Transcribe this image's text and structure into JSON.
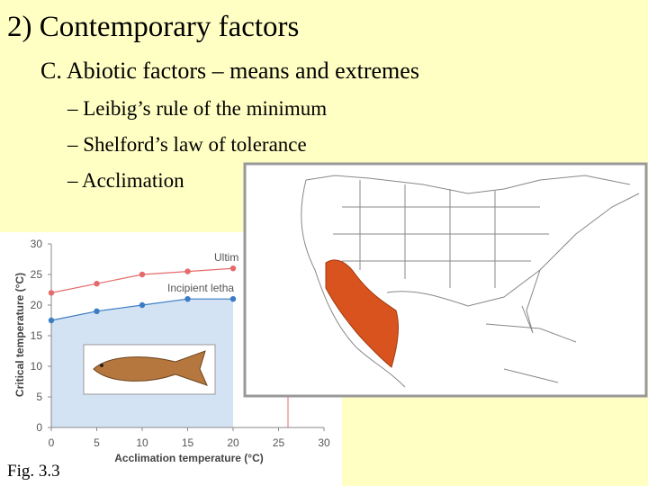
{
  "slide": {
    "title": "2) Contemporary factors",
    "subtitle": "C. Abiotic factors – means and extremes",
    "bullets": [
      "– Leibig’s rule of the minimum",
      "– Shelford’s law of tolerance",
      "– Acclimation"
    ],
    "caption": "Fig. 3.3"
  },
  "chart_data": {
    "type": "line",
    "x_label": "Acclimation temperature (°C)",
    "y_label": "Critical temperature (°C)",
    "x": [
      0,
      5,
      10,
      15,
      20
    ],
    "series": [
      {
        "name": "Ultim",
        "color": "#e56a6a",
        "values": [
          22,
          23.5,
          25,
          25.5,
          26
        ]
      },
      {
        "name": "Incipient letha",
        "color": "#3c7cc4",
        "values": [
          17.5,
          19,
          20,
          21,
          21
        ]
      }
    ],
    "xlim": [
      0,
      30
    ],
    "ylim": [
      0,
      30
    ],
    "xticks": [
      0,
      5,
      10,
      15,
      20,
      25,
      30
    ],
    "yticks": [
      0,
      5,
      10,
      15,
      20,
      25,
      30
    ]
  }
}
